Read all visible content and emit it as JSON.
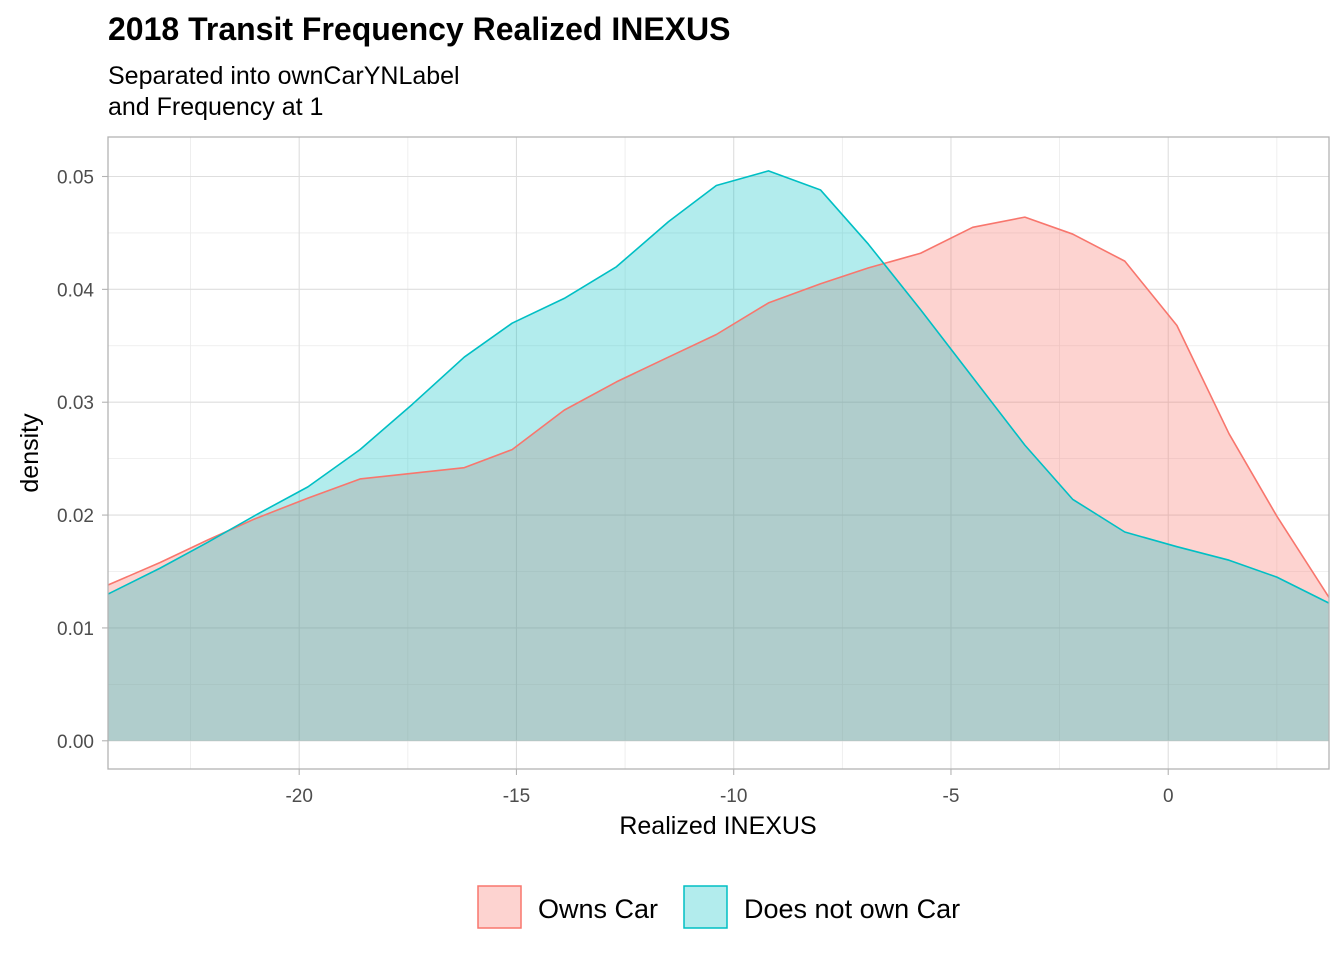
{
  "chart_data": {
    "type": "area",
    "title": "2018 Transit Frequency Realized INEXUS",
    "subtitle": [
      "Separated into ownCarYNLabel",
      "and Frequency at 1"
    ],
    "xlabel": "Realized INEXUS",
    "ylabel": "density",
    "xlim": [
      -24.4,
      3.7
    ],
    "ylim": [
      -0.0025,
      0.0535
    ],
    "x_ticks": [
      -20,
      -15,
      -10,
      -5,
      0
    ],
    "x_tick_labels": [
      "-20",
      "-15",
      "-10",
      "-5",
      "0"
    ],
    "y_ticks": [
      0.0,
      0.01,
      0.02,
      0.03,
      0.04,
      0.05
    ],
    "y_tick_labels": [
      "0.00",
      "0.01",
      "0.02",
      "0.03",
      "0.04",
      "0.05"
    ],
    "grid": true,
    "legend_position": "bottom",
    "series": [
      {
        "name": "Owns Car",
        "line_color": "#F8766D",
        "fill_color": "#F8766D",
        "fill_opacity": 0.32,
        "x": [
          -24.4,
          -23.2,
          -22.1,
          -21.0,
          -19.8,
          -18.6,
          -17.4,
          -16.2,
          -15.1,
          -13.9,
          -12.7,
          -11.5,
          -10.4,
          -9.2,
          -8.0,
          -6.9,
          -5.7,
          -4.5,
          -3.3,
          -2.2,
          -1.0,
          0.2,
          1.4,
          2.5,
          3.7
        ],
        "y": [
          0.0138,
          0.0158,
          0.0178,
          0.0197,
          0.0215,
          0.0232,
          0.0237,
          0.0242,
          0.0258,
          0.0293,
          0.0318,
          0.034,
          0.036,
          0.0388,
          0.0405,
          0.0419,
          0.0432,
          0.0455,
          0.0464,
          0.0449,
          0.0425,
          0.0368,
          0.0272,
          0.0199,
          0.0127
        ]
      },
      {
        "name": "Does not own Car",
        "line_color": "#00BFC4",
        "fill_color": "#00BFC4",
        "fill_opacity": 0.3,
        "x": [
          -24.4,
          -23.2,
          -22.1,
          -21.0,
          -19.8,
          -18.6,
          -17.4,
          -16.2,
          -15.1,
          -13.9,
          -12.7,
          -11.5,
          -10.4,
          -9.2,
          -8.0,
          -6.9,
          -5.7,
          -4.5,
          -3.3,
          -2.2,
          -1.0,
          0.2,
          1.4,
          2.5,
          3.7
        ],
        "y": [
          0.013,
          0.0153,
          0.0176,
          0.02,
          0.0225,
          0.0258,
          0.0298,
          0.034,
          0.037,
          0.0392,
          0.042,
          0.046,
          0.0492,
          0.0505,
          0.0488,
          0.044,
          0.0382,
          0.0322,
          0.0262,
          0.0214,
          0.0185,
          0.0172,
          0.016,
          0.0145,
          0.0122
        ]
      }
    ]
  }
}
